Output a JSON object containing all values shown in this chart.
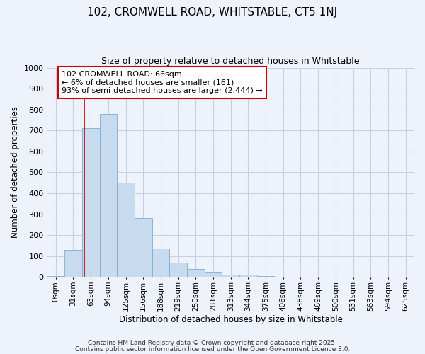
{
  "title": "102, CROMWELL ROAD, WHITSTABLE, CT5 1NJ",
  "subtitle": "Size of property relative to detached houses in Whitstable",
  "xlabel": "Distribution of detached houses by size in Whitstable",
  "ylabel": "Number of detached properties",
  "bin_labels": [
    "0sqm",
    "31sqm",
    "63sqm",
    "94sqm",
    "125sqm",
    "156sqm",
    "188sqm",
    "219sqm",
    "250sqm",
    "281sqm",
    "313sqm",
    "344sqm",
    "375sqm",
    "406sqm",
    "438sqm",
    "469sqm",
    "500sqm",
    "531sqm",
    "563sqm",
    "594sqm",
    "625sqm"
  ],
  "bar_values": [
    5,
    130,
    710,
    780,
    450,
    280,
    135,
    70,
    38,
    25,
    10,
    10,
    3,
    0,
    0,
    0,
    0,
    0,
    0,
    0,
    0
  ],
  "bar_color": "#c8daee",
  "bar_edge_color": "#7bafd4",
  "background_color": "#eef2fb",
  "grid_color": "#c5cfe8",
  "red_line_x": 2.12,
  "annotation_text": "102 CROMWELL ROAD: 66sqm\n← 6% of detached houses are smaller (161)\n93% of semi-detached houses are larger (2,444) →",
  "annotation_box_color": "#ffffff",
  "annotation_border_color": "#cc0000",
  "ylim": [
    0,
    1000
  ],
  "yticks": [
    0,
    100,
    200,
    300,
    400,
    500,
    600,
    700,
    800,
    900,
    1000
  ],
  "footer_line1": "Contains HM Land Registry data © Crown copyright and database right 2025.",
  "footer_line2": "Contains public sector information licensed under the Open Government Licence 3.0."
}
